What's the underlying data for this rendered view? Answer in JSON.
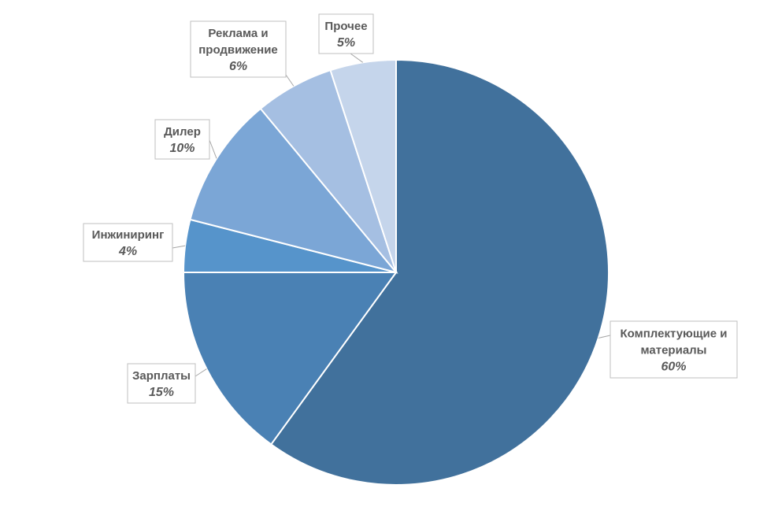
{
  "chart_data": {
    "type": "pie",
    "title": "",
    "start_angle_deg": 0,
    "direction": "clockwise",
    "slices": [
      {
        "label": "Комплектующие и материалы",
        "label_lines": [
          "Комплектующие и",
          "материалы"
        ],
        "value": 60,
        "display": "60%",
        "color": "#41719c"
      },
      {
        "label": "Зарплаты",
        "label_lines": [
          "Зарплаты"
        ],
        "value": 15,
        "display": "15%",
        "color": "#4a81b4"
      },
      {
        "label": "Инжиниринг",
        "label_lines": [
          "Инжиниринг"
        ],
        "value": 4,
        "display": "4%",
        "color": "#5694cb"
      },
      {
        "label": "Дилер",
        "label_lines": [
          "Дилер"
        ],
        "value": 10,
        "display": "10%",
        "color": "#7ba6d6"
      },
      {
        "label": "Реклама и продвижение",
        "label_lines": [
          "Реклама и",
          "продвижение"
        ],
        "value": 6,
        "display": "6%",
        "color": "#a5bfe2"
      },
      {
        "label": "Прочее",
        "label_lines": [
          "Прочее"
        ],
        "value": 5,
        "display": "5%",
        "color": "#c5d5eb"
      }
    ]
  }
}
